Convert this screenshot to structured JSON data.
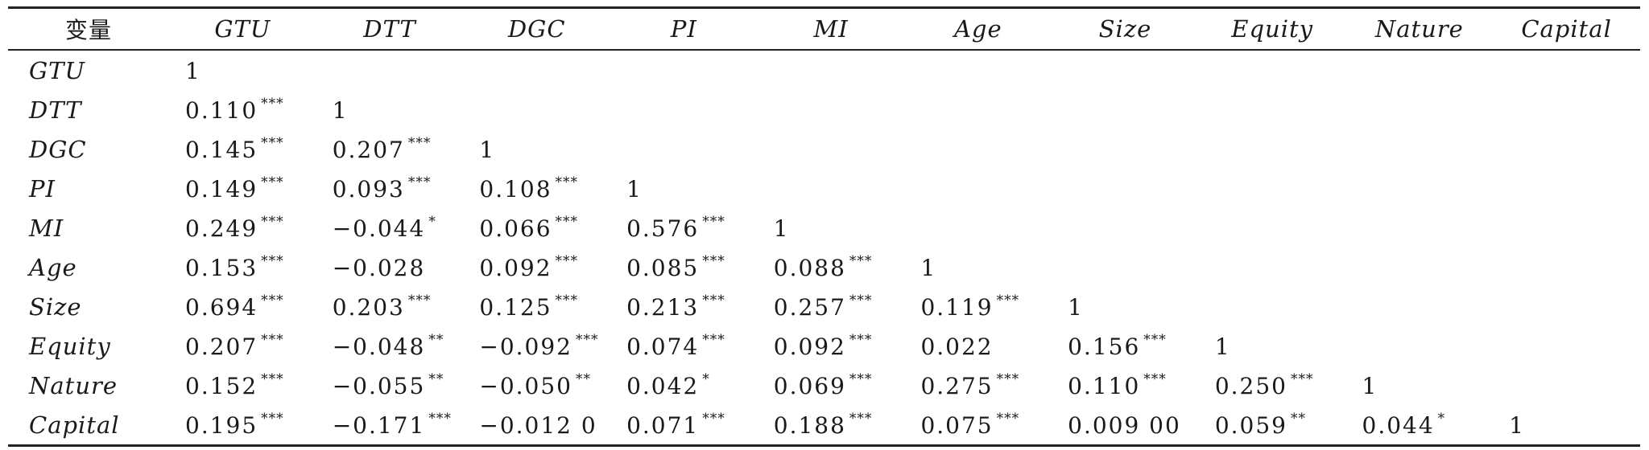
{
  "table": {
    "corner_label": "变量",
    "columns": [
      "GTU",
      "DTT",
      "DGC",
      "PI",
      "MI",
      "Age",
      "Size",
      "Equity",
      "Nature",
      "Capital"
    ],
    "rows": [
      {
        "label": "GTU",
        "cells": [
          {
            "value": "1",
            "stars": ""
          }
        ]
      },
      {
        "label": "DTT",
        "cells": [
          {
            "value": "0.110",
            "stars": "***"
          },
          {
            "value": "1",
            "stars": ""
          }
        ]
      },
      {
        "label": "DGC",
        "cells": [
          {
            "value": "0.145",
            "stars": "***"
          },
          {
            "value": "0.207",
            "stars": "***"
          },
          {
            "value": "1",
            "stars": ""
          }
        ]
      },
      {
        "label": "PI",
        "cells": [
          {
            "value": "0.149",
            "stars": "***"
          },
          {
            "value": "0.093",
            "stars": "***"
          },
          {
            "value": "0.108",
            "stars": "***"
          },
          {
            "value": "1",
            "stars": ""
          }
        ]
      },
      {
        "label": "MI",
        "cells": [
          {
            "value": "0.249",
            "stars": "***"
          },
          {
            "value": "−0.044",
            "stars": "*"
          },
          {
            "value": "0.066",
            "stars": "***"
          },
          {
            "value": "0.576",
            "stars": "***"
          },
          {
            "value": "1",
            "stars": ""
          }
        ]
      },
      {
        "label": "Age",
        "cells": [
          {
            "value": "0.153",
            "stars": "***"
          },
          {
            "value": "−0.028",
            "stars": ""
          },
          {
            "value": "0.092",
            "stars": "***"
          },
          {
            "value": "0.085",
            "stars": "***"
          },
          {
            "value": "0.088",
            "stars": "***"
          },
          {
            "value": "1",
            "stars": ""
          }
        ]
      },
      {
        "label": "Size",
        "cells": [
          {
            "value": "0.694",
            "stars": "***"
          },
          {
            "value": "0.203",
            "stars": "***"
          },
          {
            "value": "0.125",
            "stars": "***"
          },
          {
            "value": "0.213",
            "stars": "***"
          },
          {
            "value": "0.257",
            "stars": "***"
          },
          {
            "value": "0.119",
            "stars": "***"
          },
          {
            "value": "1",
            "stars": ""
          }
        ]
      },
      {
        "label": "Equity",
        "cells": [
          {
            "value": "0.207",
            "stars": "***"
          },
          {
            "value": "−0.048",
            "stars": "**"
          },
          {
            "value": "−0.092",
            "stars": "***"
          },
          {
            "value": "0.074",
            "stars": "***"
          },
          {
            "value": "0.092",
            "stars": "***"
          },
          {
            "value": "0.022",
            "stars": ""
          },
          {
            "value": "0.156",
            "stars": "***"
          },
          {
            "value": "1",
            "stars": ""
          }
        ]
      },
      {
        "label": "Nature",
        "cells": [
          {
            "value": "0.152",
            "stars": "***"
          },
          {
            "value": "−0.055",
            "stars": "**"
          },
          {
            "value": "−0.050",
            "stars": "**"
          },
          {
            "value": "0.042",
            "stars": "*"
          },
          {
            "value": "0.069",
            "stars": "***"
          },
          {
            "value": "0.275",
            "stars": "***"
          },
          {
            "value": "0.110",
            "stars": "***"
          },
          {
            "value": "0.250",
            "stars": "***"
          },
          {
            "value": "1",
            "stars": ""
          }
        ]
      },
      {
        "label": "Capital",
        "cells": [
          {
            "value": "0.195",
            "stars": "***"
          },
          {
            "value": "−0.171",
            "stars": "***"
          },
          {
            "value": "−0.012 0",
            "stars": ""
          },
          {
            "value": "0.071",
            "stars": "***"
          },
          {
            "value": "0.188",
            "stars": "***"
          },
          {
            "value": "0.075",
            "stars": "***"
          },
          {
            "value": "0.009 00",
            "stars": ""
          },
          {
            "value": "0.059",
            "stars": "**"
          },
          {
            "value": "0.044",
            "stars": "*"
          },
          {
            "value": "1",
            "stars": ""
          }
        ]
      }
    ]
  }
}
